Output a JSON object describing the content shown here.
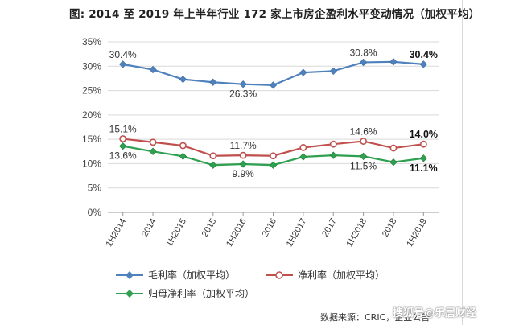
{
  "chart_data": {
    "type": "line",
    "title": "图: 2014 至 2019 年上半年行业 172 家上市房企盈利水平变动情况（加权平均）",
    "categories": [
      "1H2014",
      "2014",
      "1H2015",
      "2015",
      "1H2016",
      "2016",
      "1H2017",
      "2017",
      "1H2018",
      "2018",
      "1H2019"
    ],
    "ylim": [
      0,
      35
    ],
    "yticks": [
      "0%",
      "5%",
      "10%",
      "15%",
      "20%",
      "25%",
      "30%",
      "35%"
    ],
    "grid": true,
    "legend_position": "bottom",
    "series": [
      {
        "name": "毛利率（加权平均）",
        "color": "#4f81bd",
        "values": [
          30.4,
          29.3,
          27.3,
          26.7,
          26.3,
          26.1,
          28.7,
          29.0,
          30.8,
          30.9,
          30.4
        ]
      },
      {
        "name": "净利率（加权平均）",
        "color": "#c0504d",
        "values": [
          15.1,
          14.4,
          13.7,
          11.6,
          11.7,
          11.6,
          13.3,
          14.0,
          14.6,
          13.2,
          14.0
        ]
      },
      {
        "name": "归母净利率（加权平均）",
        "color": "#2ea04f",
        "values": [
          13.6,
          12.5,
          11.5,
          9.7,
          9.9,
          9.7,
          11.4,
          11.7,
          11.5,
          10.3,
          11.1
        ]
      }
    ],
    "annotations": [
      {
        "series": 0,
        "index": 0,
        "text": "30.4%",
        "bold": false,
        "pos": "above"
      },
      {
        "series": 0,
        "index": 4,
        "text": "26.3%",
        "bold": false,
        "pos": "below"
      },
      {
        "series": 0,
        "index": 8,
        "text": "30.8%",
        "bold": false,
        "pos": "above"
      },
      {
        "series": 0,
        "index": 10,
        "text": "30.4%",
        "bold": true,
        "pos": "above"
      },
      {
        "series": 1,
        "index": 0,
        "text": "15.1%",
        "bold": false,
        "pos": "above"
      },
      {
        "series": 1,
        "index": 4,
        "text": "11.7%",
        "bold": false,
        "pos": "above"
      },
      {
        "series": 1,
        "index": 8,
        "text": "14.6%",
        "bold": false,
        "pos": "above"
      },
      {
        "series": 1,
        "index": 10,
        "text": "14.0%",
        "bold": true,
        "pos": "above"
      },
      {
        "series": 2,
        "index": 0,
        "text": "13.6%",
        "bold": false,
        "pos": "below"
      },
      {
        "series": 2,
        "index": 4,
        "text": "9.9%",
        "bold": false,
        "pos": "below"
      },
      {
        "series": 2,
        "index": 8,
        "text": "11.5%",
        "bold": false,
        "pos": "below"
      },
      {
        "series": 2,
        "index": 10,
        "text": "11.1%",
        "bold": true,
        "pos": "below"
      }
    ]
  },
  "source": "数据来源：CRIC，企业公告",
  "watermark": "搜狐号@乐居财经"
}
